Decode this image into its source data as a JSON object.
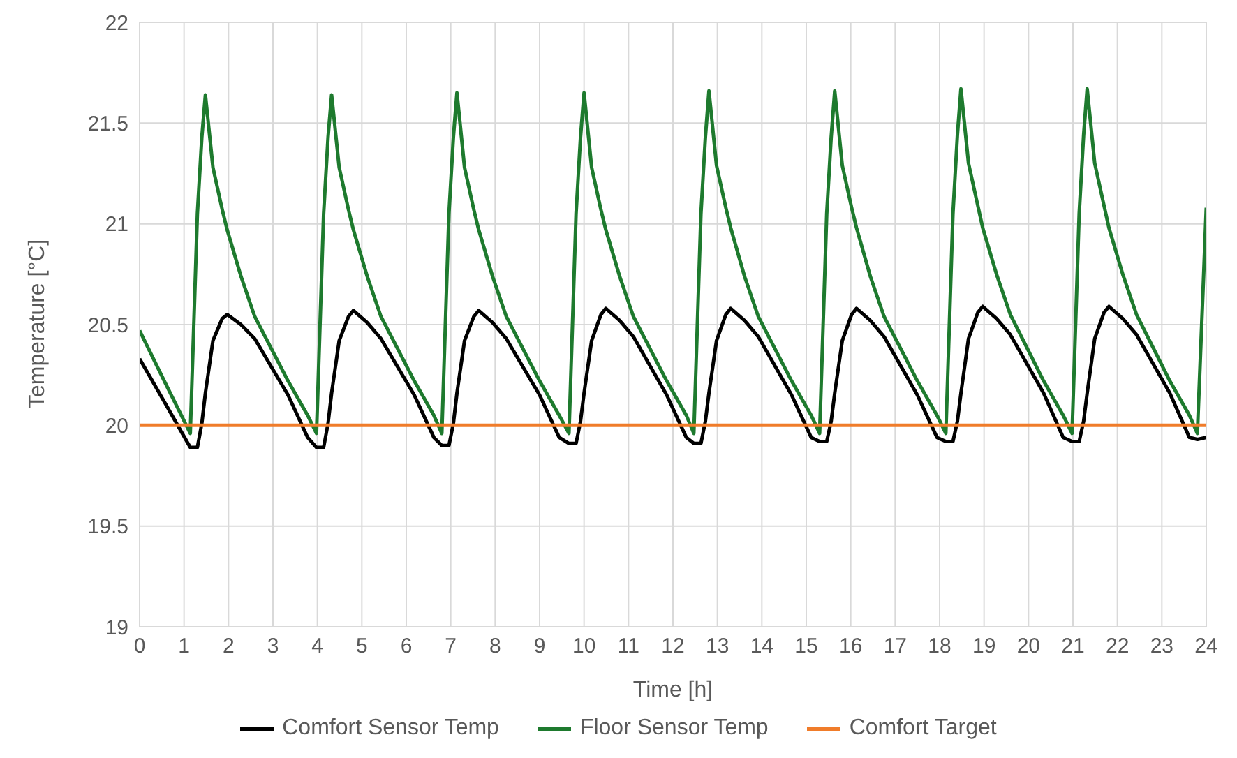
{
  "chart_data": {
    "type": "line",
    "xlabel": "Time [h]",
    "ylabel": "Temperature [°C]",
    "xlim": [
      0,
      24
    ],
    "xticks": [
      0,
      1,
      2,
      3,
      4,
      5,
      6,
      7,
      8,
      9,
      10,
      11,
      12,
      13,
      14,
      15,
      16,
      17,
      18,
      19,
      20,
      21,
      22,
      23,
      24
    ],
    "ylim": [
      19,
      22
    ],
    "yticks": [
      19,
      19.5,
      20,
      20.5,
      21,
      21.5,
      22
    ],
    "grid": true,
    "legend": "bottom",
    "marker": "none",
    "line_style": "solid",
    "x": [
      0,
      0.6,
      1.14,
      1.3,
      1.4,
      1.48,
      1.65,
      1.86,
      1.97,
      2.28,
      2.59,
      3.34,
      3.78,
      3.98,
      4.14,
      4.24,
      4.32,
      4.49,
      4.7,
      4.81,
      5.12,
      5.43,
      6.18,
      6.62,
      6.8,
      6.96,
      7.06,
      7.14,
      7.31,
      7.52,
      7.63,
      7.94,
      8.25,
      9.0,
      9.44,
      9.66,
      9.82,
      9.92,
      10.0,
      10.17,
      10.38,
      10.49,
      10.8,
      11.11,
      11.86,
      12.3,
      12.47,
      12.63,
      12.73,
      12.81,
      12.98,
      13.19,
      13.3,
      13.61,
      13.92,
      14.67,
      15.11,
      15.3,
      15.46,
      15.56,
      15.64,
      15.81,
      16.02,
      16.13,
      16.44,
      16.75,
      17.5,
      17.94,
      18.14,
      18.3,
      18.4,
      18.48,
      18.65,
      18.86,
      18.97,
      19.28,
      19.59,
      20.34,
      20.78,
      20.98,
      21.14,
      21.24,
      21.32,
      21.49,
      21.7,
      21.81,
      22.12,
      22.43,
      23.18,
      23.62,
      23.8,
      24
    ],
    "series": [
      {
        "name": "Comfort Sensor Temp",
        "color": "#000000",
        "values": [
          20.33,
          20.1,
          19.89,
          19.89,
          20.01,
          20.16,
          20.42,
          20.53,
          20.55,
          20.5,
          20.43,
          20.15,
          19.94,
          19.89,
          19.89,
          20.01,
          20.16,
          20.42,
          20.54,
          20.57,
          20.51,
          20.43,
          20.15,
          19.94,
          19.9,
          19.9,
          20.01,
          20.16,
          20.42,
          20.54,
          20.57,
          20.51,
          20.43,
          20.15,
          19.94,
          19.91,
          19.91,
          20.02,
          20.16,
          20.42,
          20.55,
          20.58,
          20.52,
          20.44,
          20.15,
          19.94,
          19.91,
          19.91,
          20.02,
          20.16,
          20.42,
          20.55,
          20.58,
          20.52,
          20.44,
          20.15,
          19.94,
          19.92,
          19.92,
          20.02,
          20.16,
          20.42,
          20.55,
          20.58,
          20.52,
          20.44,
          20.15,
          19.94,
          19.92,
          19.92,
          20.02,
          20.16,
          20.43,
          20.56,
          20.59,
          20.53,
          20.45,
          20.16,
          19.94,
          19.92,
          19.92,
          20.02,
          20.16,
          20.43,
          20.56,
          20.59,
          20.53,
          20.45,
          20.16,
          19.94,
          19.93,
          19.94
        ]
      },
      {
        "name": "Floor Sensor Temp",
        "color": "#1e7a2e",
        "values": [
          20.47,
          20.2,
          19.96,
          21.05,
          21.43,
          21.64,
          21.28,
          21.07,
          20.97,
          20.74,
          20.54,
          20.22,
          20.05,
          19.96,
          21.05,
          21.43,
          21.64,
          21.28,
          21.07,
          20.97,
          20.74,
          20.54,
          20.22,
          20.05,
          19.96,
          21.05,
          21.43,
          21.65,
          21.28,
          21.07,
          20.97,
          20.74,
          20.54,
          20.22,
          20.05,
          19.96,
          21.05,
          21.43,
          21.65,
          21.28,
          21.07,
          20.97,
          20.74,
          20.54,
          20.22,
          20.05,
          19.96,
          21.05,
          21.43,
          21.66,
          21.29,
          21.08,
          20.98,
          20.74,
          20.54,
          20.22,
          20.05,
          19.96,
          21.05,
          21.43,
          21.66,
          21.29,
          21.08,
          20.98,
          20.74,
          20.54,
          20.22,
          20.05,
          19.96,
          21.05,
          21.44,
          21.67,
          21.3,
          21.09,
          20.98,
          20.75,
          20.55,
          20.22,
          20.05,
          19.96,
          21.05,
          21.44,
          21.67,
          21.3,
          21.09,
          20.98,
          20.75,
          20.55,
          20.22,
          20.05,
          19.96,
          21.08
        ]
      },
      {
        "name": "Comfort Target",
        "color": "#f07c2a",
        "x": [
          0,
          24
        ],
        "values": [
          20,
          20
        ]
      }
    ]
  }
}
